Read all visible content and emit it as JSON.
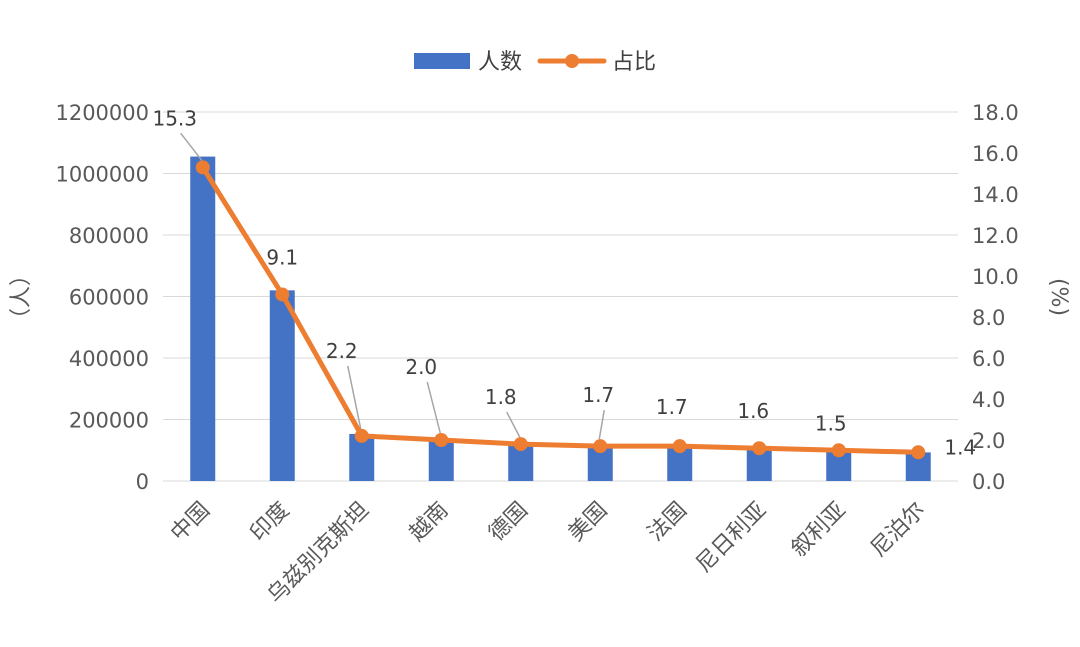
{
  "chart_data": {
    "type": "bar",
    "categories": [
      "中国",
      "印度",
      "乌兹别克斯坦",
      "越南",
      "德国",
      "美国",
      "法国",
      "尼日利亚",
      "叙利亚",
      "尼泊尔"
    ],
    "series": [
      {
        "name": "人数",
        "type": "bar",
        "axis": "left",
        "color": "#4472C4",
        "values": [
          1055000,
          620000,
          153000,
          135000,
          125000,
          115000,
          113000,
          110000,
          105000,
          93000
        ]
      },
      {
        "name": "占比",
        "type": "line",
        "axis": "right",
        "color": "#ED7D31",
        "values": [
          15.3,
          9.1,
          2.2,
          2.0,
          1.8,
          1.7,
          1.7,
          1.6,
          1.5,
          1.4
        ],
        "data_labels": [
          "15.3",
          "9.1",
          "2.2",
          "2.0",
          "1.8",
          "1.7",
          "1.7",
          "1.6",
          "1.5",
          "1.4"
        ]
      }
    ],
    "ylabel": "（人）",
    "y2label": "(%)",
    "ylim": [
      0,
      1200000
    ],
    "y2lim": [
      0,
      18
    ],
    "yticks": [
      "0",
      "200000",
      "400000",
      "600000",
      "800000",
      "1000000",
      "1200000"
    ],
    "y2ticks": [
      "0.0",
      "2.0",
      "4.0",
      "6.0",
      "8.0",
      "10.0",
      "12.0",
      "14.0",
      "16.0",
      "18.0"
    ],
    "grid": true,
    "legend_position": "top-center"
  }
}
